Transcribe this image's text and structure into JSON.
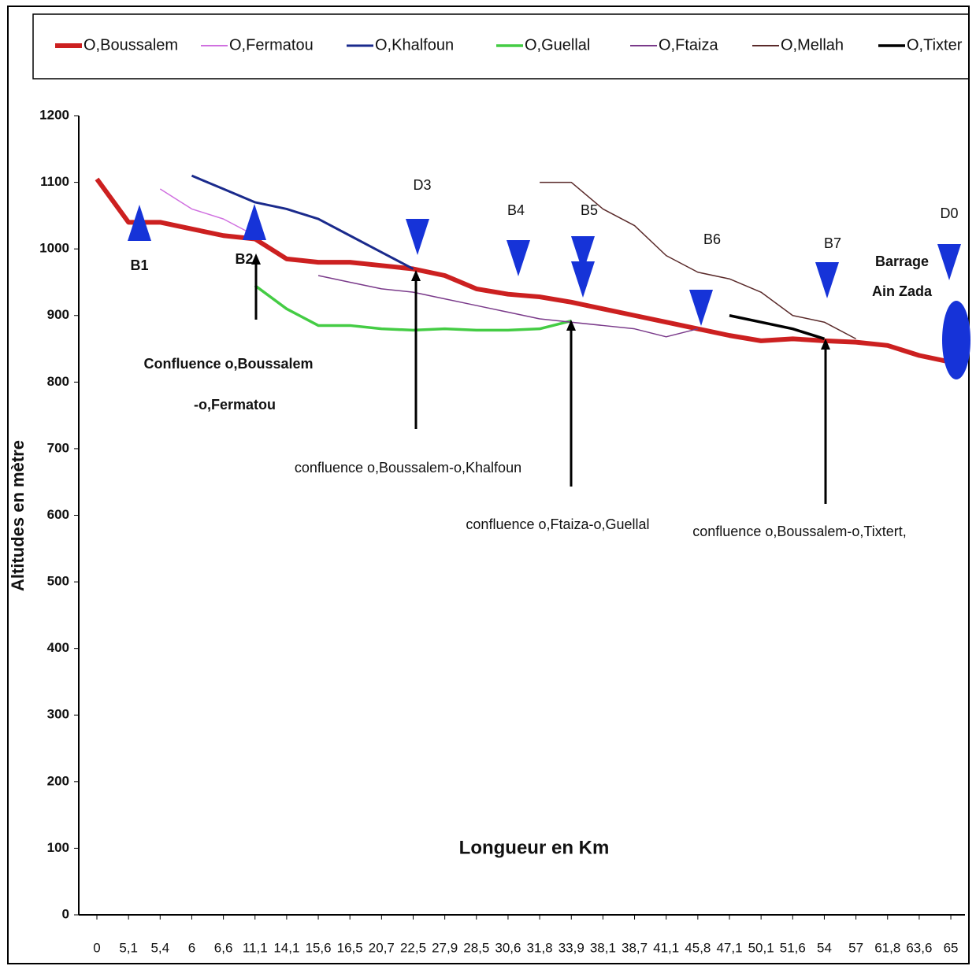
{
  "chart_data": {
    "type": "line",
    "title_y": "Altitudes en mètre",
    "title_x": "Longueur en Km",
    "categories": [
      "0",
      "5,1",
      "5,4",
      "6",
      "6,6",
      "11,1",
      "14,1",
      "15,6",
      "16,5",
      "20,7",
      "22,5",
      "27,9",
      "28,5",
      "30,6",
      "31,8",
      "33,9",
      "38,1",
      "38,7",
      "41,1",
      "45,8",
      "47,1",
      "50,1",
      "51,6",
      "54",
      "57",
      "61,8",
      "63,6",
      "65"
    ],
    "ylim": [
      0,
      1200
    ],
    "yticks": [
      0,
      100,
      200,
      300,
      400,
      500,
      600,
      700,
      800,
      900,
      1000,
      1100,
      1200
    ],
    "series": [
      {
        "name": "O,Boussalem",
        "color": "#cc2020",
        "width": 6,
        "values": [
          1105,
          1040,
          1040,
          1030,
          1020,
          1015,
          985,
          980,
          980,
          975,
          970,
          960,
          940,
          932,
          928,
          920,
          910,
          900,
          890,
          880,
          870,
          862,
          865,
          862,
          860,
          855,
          840,
          830
        ]
      },
      {
        "name": "O,Fermatou",
        "color": "#d070e0",
        "width": 1.5,
        "values": [
          null,
          null,
          1090,
          1060,
          1045,
          1020,
          null,
          null,
          null,
          null,
          null,
          null,
          null,
          null,
          null,
          null,
          null,
          null,
          null,
          null,
          null,
          null,
          null,
          null,
          null,
          null,
          null,
          null
        ]
      },
      {
        "name": "O,Khalfoun",
        "color": "#1a2a8c",
        "width": 3,
        "values": [
          null,
          null,
          null,
          1110,
          1090,
          1070,
          1060,
          1045,
          1020,
          995,
          970,
          null,
          null,
          null,
          null,
          null,
          null,
          null,
          null,
          null,
          null,
          null,
          null,
          null,
          null,
          null,
          null,
          null
        ]
      },
      {
        "name": "O,Guellal",
        "color": "#44cc44",
        "width": 3.5,
        "values": [
          null,
          null,
          null,
          null,
          null,
          945,
          910,
          885,
          885,
          880,
          878,
          880,
          878,
          878,
          880,
          892,
          null,
          null,
          null,
          null,
          null,
          null,
          null,
          null,
          null,
          null,
          null,
          null
        ]
      },
      {
        "name": "O,Ftaiza",
        "color": "#7a3a8a",
        "width": 1.5,
        "values": [
          null,
          null,
          null,
          null,
          null,
          null,
          null,
          960,
          950,
          940,
          935,
          925,
          915,
          905,
          895,
          890,
          885,
          880,
          868,
          880,
          null,
          null,
          null,
          null,
          null,
          null,
          null,
          null
        ]
      },
      {
        "name": "O,Mellah",
        "color": "#5a2a2a",
        "width": 1.5,
        "values": [
          null,
          null,
          null,
          null,
          null,
          null,
          null,
          null,
          null,
          null,
          null,
          null,
          null,
          null,
          1100,
          1100,
          1060,
          1035,
          990,
          965,
          955,
          935,
          900,
          890,
          865,
          null,
          null,
          null
        ]
      },
      {
        "name": "O,Tixter",
        "color": "#000000",
        "width": 3.5,
        "values": [
          null,
          null,
          null,
          null,
          null,
          null,
          null,
          null,
          null,
          null,
          null,
          null,
          null,
          null,
          null,
          null,
          null,
          null,
          null,
          null,
          900,
          890,
          880,
          865,
          null,
          null,
          null,
          null
        ]
      }
    ],
    "annotations": [
      "B1",
      "B2",
      "D3",
      "B4",
      "B5",
      "B6",
      "B7",
      "D0",
      "Barrage",
      "Ain Zada",
      "Confluence o,Boussalem",
      "-o,Fermatou",
      "confluence o,Boussalem-o,Khalfoun",
      "confluence o,Ftaiza-o,Guellal",
      "confluence o,Boussalem-o,Tixtert,"
    ]
  }
}
